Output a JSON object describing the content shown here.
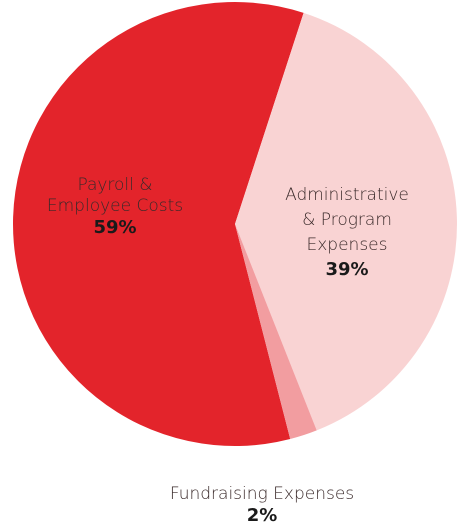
{
  "chart_data": {
    "type": "pie",
    "title": "",
    "slices": [
      {
        "label_lines": [
          "Payroll &",
          "Employee Costs"
        ],
        "percent_label": "59%",
        "value": 59,
        "color": "#e3242b"
      },
      {
        "label_lines": [
          "Administrative",
          "& Program",
          "Expenses"
        ],
        "percent_label": "39%",
        "value": 39,
        "color": "#f9d3d3"
      },
      {
        "label_lines": [
          "Fundraising Expenses"
        ],
        "percent_label": "2%",
        "value": 2,
        "color": "#f29da0"
      }
    ]
  }
}
